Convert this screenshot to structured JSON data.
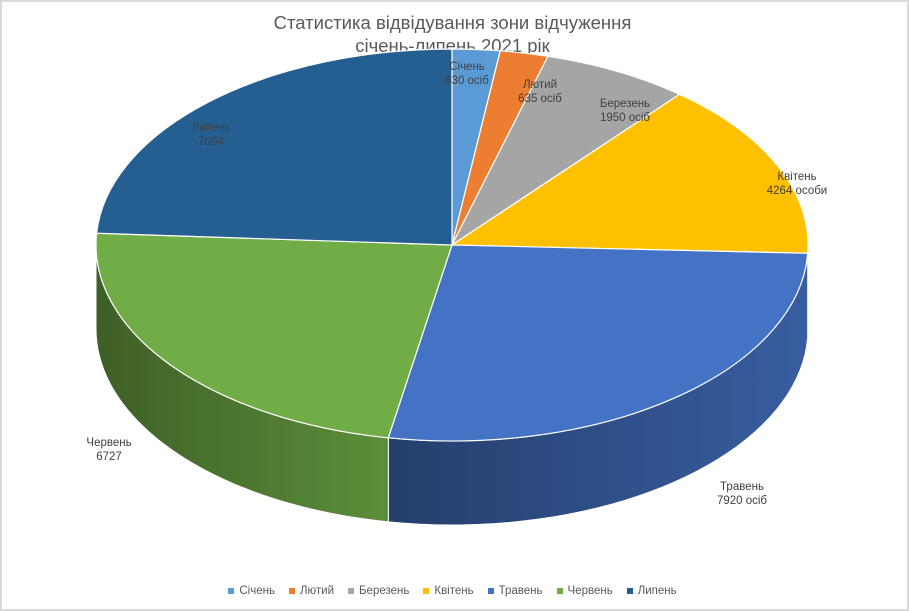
{
  "chart_data": {
    "type": "pie",
    "title": "Статистика відвідування зони відчуження",
    "subtitle": "січень-липень 2021 рік",
    "slices": [
      {
        "name": "Січень",
        "value": 630,
        "label_line1": "Січень",
        "label_line2": "630 осіб",
        "color": "#5b9bd5"
      },
      {
        "name": "Лютий",
        "value": 635,
        "label_line1": "Лютий",
        "label_line2": "635 осіб",
        "color": "#ed7d31"
      },
      {
        "name": "Березень",
        "value": 1950,
        "label_line1": "Березень",
        "label_line2": "1950 осіб",
        "color": "#a5a5a5"
      },
      {
        "name": "Квітень",
        "value": 4264,
        "label_line1": "Квітень",
        "label_line2": "4264 особи",
        "color": "#ffc000"
      },
      {
        "name": "Травень",
        "value": 7920,
        "label_line1": "Травень",
        "label_line2": "7920 осіб",
        "color": "#4472c4"
      },
      {
        "name": "Червень",
        "value": 6727,
        "label_line1": "Червень",
        "label_line2": "6727",
        "color": "#70ad47"
      },
      {
        "name": "Липень",
        "value": 7004,
        "label_line1": "Липень",
        "label_line2": "7004",
        "color": "#255e91"
      }
    ],
    "legend_position": "bottom",
    "style": "3d"
  }
}
